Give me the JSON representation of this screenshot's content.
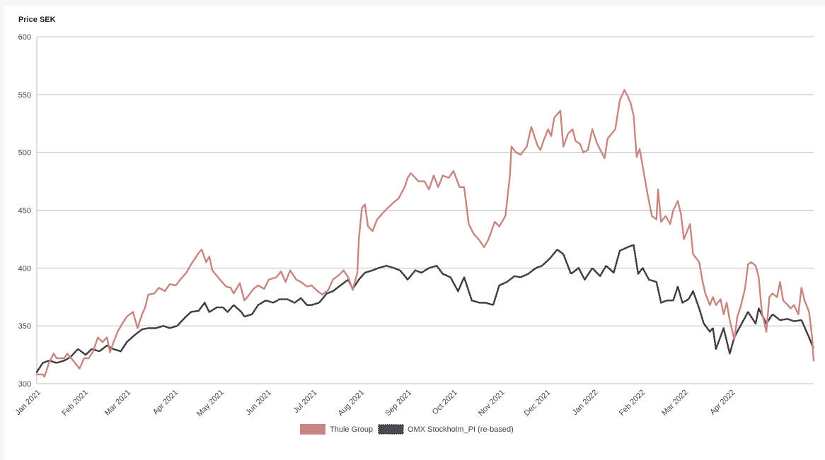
{
  "chart_data": {
    "type": "line",
    "ylabel": "Price SEK",
    "xlabel": "",
    "x_units": "days since 2021-01-01",
    "ylim": [
      300,
      600
    ],
    "yticks": [
      300,
      350,
      400,
      450,
      500,
      550,
      600
    ],
    "xlim": [
      0,
      509
    ],
    "xticks": [
      {
        "label": "Jan 2021",
        "x": 0
      },
      {
        "label": "Feb 2021",
        "x": 31
      },
      {
        "label": "Mar 2021",
        "x": 59
      },
      {
        "label": "Apr 2021",
        "x": 90
      },
      {
        "label": "May 2021",
        "x": 120
      },
      {
        "label": "Jun 2021",
        "x": 151
      },
      {
        "label": "Jul 2021",
        "x": 181
      },
      {
        "label": "Aug 2021",
        "x": 212
      },
      {
        "label": "Sep 2021",
        "x": 243
      },
      {
        "label": "Oct 2021",
        "x": 273
      },
      {
        "label": "Nov 2021",
        "x": 304
      },
      {
        "label": "Dec 2021",
        "x": 334
      },
      {
        "label": "Jan 2022",
        "x": 365
      },
      {
        "label": "Feb 2022",
        "x": 396
      },
      {
        "label": "Mar 2022",
        "x": 424
      },
      {
        "label": "Apr 2022",
        "x": 455
      }
    ],
    "grid": true,
    "legend_position": "bottom-center",
    "series": [
      {
        "name": "Thule Group",
        "color": "#c9857f",
        "style": "solid",
        "x": [
          0,
          4,
          5,
          8,
          11,
          13,
          18,
          20,
          25,
          28,
          31,
          34,
          37,
          40,
          43,
          46,
          48,
          50,
          53,
          56,
          59,
          63,
          66,
          69,
          71,
          73,
          77,
          80,
          84,
          87,
          91,
          94,
          98,
          101,
          106,
          108,
          111,
          113,
          115,
          120,
          124,
          127,
          129,
          133,
          136,
          138,
          142,
          145,
          149,
          152,
          157,
          160,
          163,
          166,
          170,
          173,
          177,
          180,
          184,
          187,
          191,
          194,
          198,
          201,
          204,
          207,
          210,
          211,
          213,
          215,
          217,
          220,
          223,
          227,
          230,
          234,
          237,
          241,
          243,
          245,
          248,
          250,
          254,
          257,
          260,
          263,
          266,
          270,
          273,
          277,
          280,
          283,
          286,
          290,
          293,
          296,
          300,
          303,
          307,
          310,
          311,
          314,
          317,
          321,
          324,
          328,
          330,
          332,
          335,
          337,
          339,
          343,
          345,
          348,
          351,
          353,
          356,
          358,
          361,
          364,
          367,
          370,
          372,
          374,
          376,
          379,
          382,
          385,
          387,
          389,
          391,
          393,
          395,
          398,
          400,
          403,
          406,
          407,
          409,
          412,
          415,
          417,
          420,
          422,
          424,
          428,
          430,
          434,
          436,
          438,
          441,
          443,
          445,
          448,
          450,
          452,
          454,
          457,
          459,
          461,
          464,
          466,
          468,
          471,
          473,
          475,
          478,
          480,
          482,
          485,
          487,
          489,
          492,
          494,
          496,
          499,
          501,
          503,
          506,
          508,
          509
        ],
        "y": [
          308,
          308,
          306,
          318,
          326,
          322,
          322,
          326,
          318,
          313,
          322,
          322,
          328,
          340,
          336,
          340,
          327,
          335,
          345,
          352,
          358,
          362,
          348,
          360,
          366,
          377,
          378,
          383,
          380,
          386,
          385,
          390,
          396,
          403,
          413,
          416,
          405,
          410,
          398,
          390,
          384,
          383,
          378,
          387,
          372,
          375,
          382,
          385,
          382,
          390,
          392,
          397,
          388,
          398,
          390,
          388,
          384,
          385,
          380,
          377,
          381,
          390,
          394,
          398,
          392,
          381,
          396,
          425,
          452,
          455,
          436,
          432,
          442,
          448,
          452,
          457,
          460,
          470,
          478,
          482,
          478,
          475,
          475,
          468,
          480,
          470,
          480,
          478,
          484,
          470,
          470,
          438,
          430,
          424,
          418,
          425,
          440,
          436,
          445,
          480,
          505,
          500,
          498,
          505,
          522,
          506,
          502,
          510,
          520,
          514,
          530,
          536,
          505,
          516,
          520,
          510,
          507,
          500,
          502,
          520,
          508,
          500,
          495,
          512,
          515,
          520,
          545,
          554,
          549,
          543,
          532,
          496,
          503,
          480,
          465,
          445,
          442,
          468,
          440,
          445,
          438,
          450,
          458,
          447,
          425,
          438,
          412,
          405,
          390,
          378,
          368,
          375,
          368,
          373,
          360,
          370,
          355,
          338,
          358,
          366,
          382,
          403,
          405,
          402,
          392,
          362,
          345,
          375,
          378,
          375,
          388,
          372,
          368,
          365,
          368,
          360,
          383,
          372,
          362,
          340,
          320
        ]
      },
      {
        "name": "OMX Stockholm_PI (re-based)",
        "color": "#3b3b42",
        "style": "dotted",
        "x": [
          0,
          4,
          8,
          13,
          18,
          22,
          27,
          32,
          36,
          41,
          46,
          50,
          55,
          59,
          64,
          69,
          73,
          78,
          83,
          87,
          92,
          97,
          101,
          106,
          110,
          113,
          118,
          122,
          125,
          129,
          134,
          136,
          141,
          145,
          150,
          155,
          159,
          164,
          169,
          173,
          177,
          180,
          185,
          190,
          194,
          199,
          204,
          207,
          211,
          215,
          220,
          224,
          229,
          234,
          238,
          243,
          248,
          252,
          257,
          262,
          266,
          271,
          276,
          280,
          285,
          290,
          294,
          299,
          303,
          308,
          313,
          317,
          322,
          327,
          331,
          336,
          341,
          345,
          350,
          355,
          359,
          364,
          369,
          373,
          378,
          382,
          387,
          391,
          394,
          397,
          401,
          406,
          409,
          413,
          417,
          420,
          423,
          427,
          430,
          434,
          437,
          441,
          443,
          445,
          450,
          454,
          457,
          461,
          466,
          471,
          473,
          478,
          482,
          487,
          492,
          496,
          501,
          506,
          509
        ],
        "y": [
          310,
          318,
          320,
          318,
          320,
          323,
          330,
          325,
          330,
          328,
          333,
          330,
          328,
          336,
          342,
          347,
          348,
          348,
          350,
          348,
          350,
          357,
          362,
          363,
          370,
          362,
          366,
          366,
          362,
          368,
          362,
          358,
          360,
          368,
          372,
          370,
          373,
          373,
          370,
          374,
          368,
          368,
          370,
          378,
          380,
          385,
          390,
          382,
          390,
          396,
          398,
          400,
          402,
          400,
          398,
          390,
          398,
          396,
          400,
          402,
          395,
          392,
          380,
          392,
          372,
          370,
          370,
          368,
          385,
          388,
          393,
          392,
          395,
          400,
          402,
          408,
          416,
          412,
          395,
          400,
          390,
          400,
          393,
          402,
          396,
          415,
          418,
          420,
          395,
          400,
          390,
          388,
          370,
          372,
          372,
          384,
          370,
          373,
          380,
          365,
          352,
          345,
          348,
          330,
          348,
          326,
          340,
          350,
          362,
          352,
          365,
          352,
          360,
          355,
          356,
          354,
          355,
          340,
          330
        ]
      }
    ]
  }
}
